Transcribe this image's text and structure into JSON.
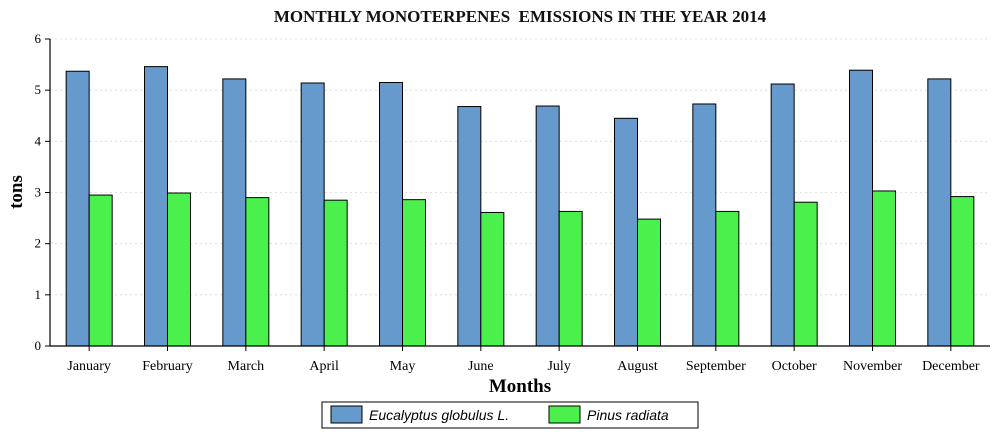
{
  "chart_data": {
    "type": "bar",
    "title": "MONTHLY MONOTERPENES  EMISSIONS IN THE YEAR 2014",
    "xlabel": "Months",
    "ylabel": "tons",
    "ylim": [
      0,
      6
    ],
    "yticks": [
      "0",
      "1",
      "2",
      "3",
      "4",
      "5",
      "6"
    ],
    "grid": true,
    "legend_position": "bottom",
    "categories": [
      "January",
      "February",
      "March",
      "April",
      "May",
      "June",
      "July",
      "August",
      "September",
      "October",
      "November",
      "December"
    ],
    "series": [
      {
        "name": "Eucalyptus globulus L.",
        "color": "#6699cc",
        "values": [
          5.37,
          5.46,
          5.22,
          5.14,
          5.15,
          4.68,
          4.69,
          4.45,
          4.73,
          5.12,
          5.39,
          5.22
        ]
      },
      {
        "name": "Pinus radiata",
        "color": "#4cf04c",
        "values": [
          2.95,
          2.99,
          2.9,
          2.85,
          2.86,
          2.61,
          2.63,
          2.48,
          2.63,
          2.81,
          3.03,
          2.92
        ]
      }
    ]
  }
}
